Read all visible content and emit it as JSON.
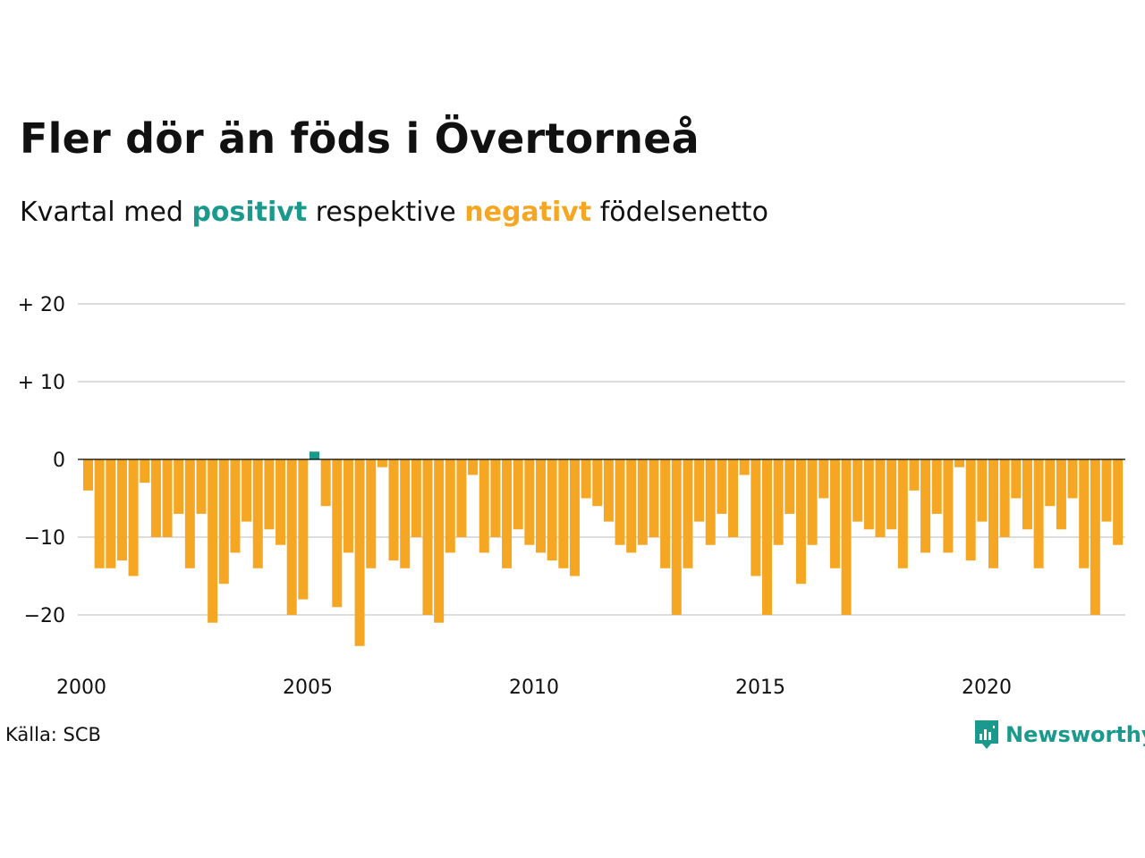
{
  "header": {
    "title": "Fler dör än föds i Övertorneå",
    "subtitle_pre": "Kvartal med",
    "subtitle_pos": "positivt",
    "subtitle_mid": "respektive",
    "subtitle_neg": "negativt",
    "subtitle_post": "födelsenetto"
  },
  "footer": {
    "source": "Källa: SCB",
    "brand": "Newsworthy"
  },
  "colors": {
    "positive": "#1a998c",
    "negative": "#f5a623",
    "grid": "#dddddd",
    "zero_line": "#000000"
  },
  "chart_data": {
    "type": "bar",
    "title": "Fler dör än föds i Övertorneå",
    "subtitle": "Kvartal med positivt respektive negativt födelsenetto",
    "x_start": "2000-Q1",
    "x_ticks": [
      "2000",
      "2005",
      "2010",
      "2015",
      "2020"
    ],
    "y_ticks": [
      {
        "value": 20,
        "label": "+ 20"
      },
      {
        "value": 10,
        "label": "+ 10"
      },
      {
        "value": 0,
        "label": "0"
      },
      {
        "value": -10,
        "label": "−10"
      },
      {
        "value": -20,
        "label": "−20"
      }
    ],
    "ylim": [
      -25,
      20
    ],
    "grid": true,
    "values": [
      -4,
      -14,
      -14,
      -13,
      -15,
      -3,
      -10,
      -10,
      -7,
      -14,
      -7,
      -21,
      -16,
      -12,
      -8,
      -14,
      -9,
      -11,
      -20,
      -18,
      1,
      -6,
      -19,
      -12,
      -24,
      -14,
      -1,
      -13,
      -14,
      -10,
      -20,
      -21,
      -12,
      -10,
      -2,
      -12,
      -10,
      -14,
      -9,
      -11,
      -12,
      -13,
      -14,
      -15,
      -5,
      -6,
      -8,
      -11,
      -12,
      -11,
      -10,
      -14,
      -20,
      -14,
      -8,
      -11,
      -7,
      -10,
      -2,
      -15,
      -20,
      -11,
      -7,
      -16,
      -11,
      -5,
      -14,
      -20,
      -8,
      -9,
      -10,
      -9,
      -14,
      -4,
      -12,
      -7,
      -12,
      -1,
      -13,
      -8,
      -14,
      -10,
      -5,
      -9,
      -14,
      -6,
      -9,
      -5,
      -14,
      -20,
      -8,
      -11
    ]
  }
}
